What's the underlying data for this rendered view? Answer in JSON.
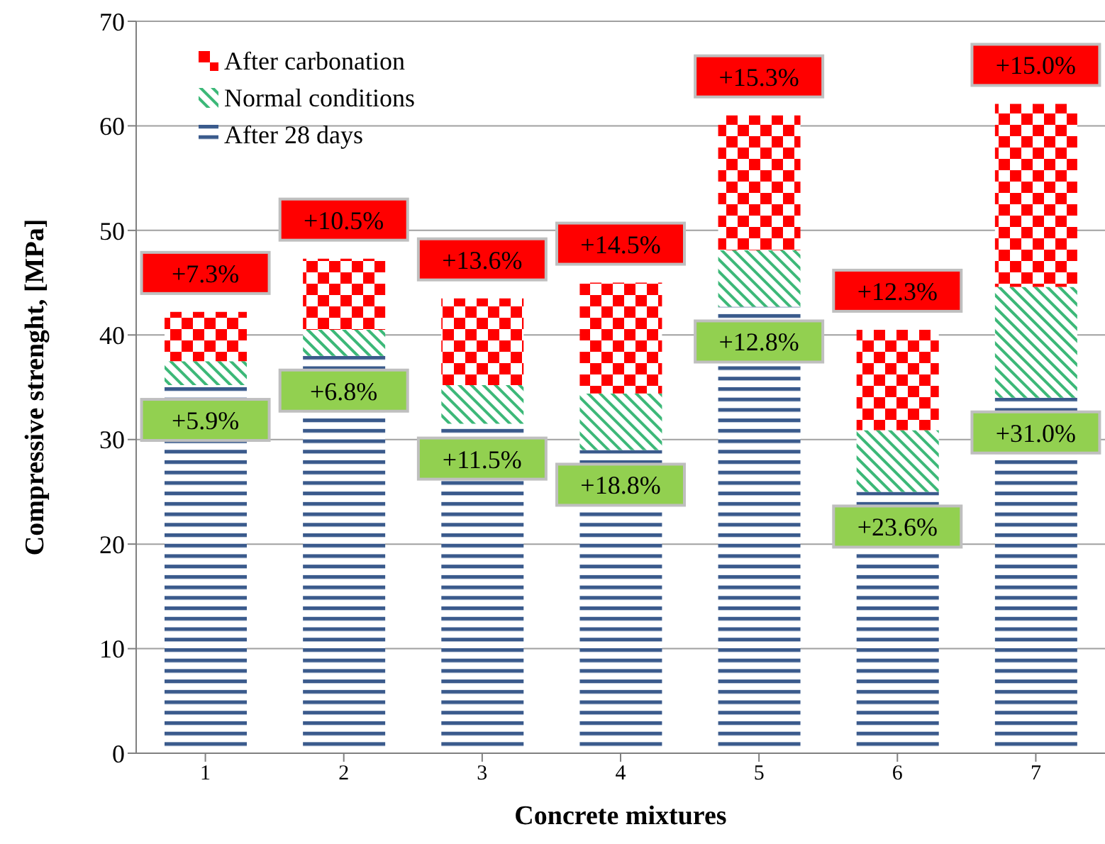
{
  "chart_data": {
    "type": "bar",
    "stacked": true,
    "xlabel": "Concrete mixtures",
    "ylabel": "Compressive strenght, [MPa]",
    "categories": [
      "1",
      "2",
      "3",
      "4",
      "5",
      "6",
      "7"
    ],
    "series": [
      {
        "name": "After 28 days",
        "color": "#3a5a8c",
        "values": [
          35.2,
          38.0,
          31.5,
          29.0,
          42.7,
          25.0,
          34.0
        ]
      },
      {
        "name": "Normal conditions",
        "color": "#3cb878",
        "values": [
          2.3,
          2.5,
          3.7,
          5.4,
          5.4,
          5.9,
          10.6
        ]
      },
      {
        "name": "After carbonation",
        "color": "#ff0000",
        "values": [
          4.7,
          6.8,
          8.3,
          10.6,
          12.9,
          9.6,
          17.5
        ]
      }
    ],
    "ylim": [
      0,
      70
    ],
    "yticks": [
      0,
      10,
      20,
      30,
      40,
      50,
      60,
      70
    ],
    "grid": "y",
    "legend": "top left",
    "annotations": [
      "+7.3%",
      "+10.5%",
      "+13.6%",
      "+14.5%",
      "+15.3%",
      "+12.3%",
      "+15.0%",
      "+5.9%",
      "+6.8%",
      "+11.5%",
      "+18.8%",
      "+12.8%",
      "+23.6%",
      "+31.0%"
    ]
  }
}
